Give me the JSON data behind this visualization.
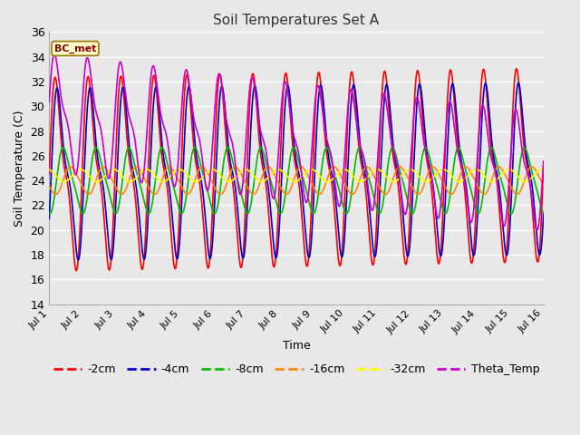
{
  "title": "Soil Temperatures Set A",
  "xlabel": "Time",
  "ylabel": "Soil Temperature (C)",
  "ylim": [
    14,
    36
  ],
  "xlim": [
    0,
    15
  ],
  "annotation": "BC_met",
  "series": {
    "-2cm": {
      "color": "#ff0000",
      "lw": 1.2
    },
    "-4cm": {
      "color": "#0000cc",
      "lw": 1.2
    },
    "-8cm": {
      "color": "#00bb00",
      "lw": 1.2
    },
    "-16cm": {
      "color": "#ff8800",
      "lw": 1.2
    },
    "-32cm": {
      "color": "#ffff00",
      "lw": 1.2
    },
    "Theta_Temp": {
      "color": "#cc00cc",
      "lw": 1.2
    }
  },
  "xtick_labels": [
    "Jul 1",
    "Jul 2",
    "Jul 3",
    "Jul 4",
    "Jul 5",
    "Jul 6",
    "Jul 7",
    "Jul 8",
    "Jul 9",
    "Jul 10",
    "Jul 11",
    "Jul 12",
    "Jul 13",
    "Jul 14",
    "Jul 15",
    "Jul 16"
  ],
  "xtick_positions": [
    0,
    1,
    2,
    3,
    4,
    5,
    6,
    7,
    8,
    9,
    10,
    11,
    12,
    13,
    14,
    15
  ],
  "ytick_positions": [
    14,
    16,
    18,
    20,
    22,
    24,
    26,
    28,
    30,
    32,
    34,
    36
  ],
  "grid_color": "#cccccc",
  "bg_color": "#e8e8e8",
  "plot_bg": "#e8e8e8"
}
